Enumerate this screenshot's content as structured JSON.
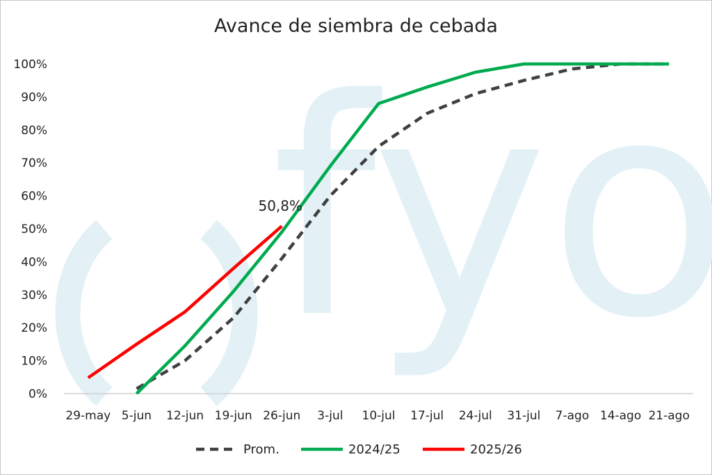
{
  "chart_data": {
    "type": "line",
    "title": "Avance de siembra de cebada",
    "xlabel": "",
    "ylabel": "",
    "categories": [
      "29-may",
      "5-jun",
      "12-jun",
      "19-jun",
      "26-jun",
      "3-jul",
      "10-jul",
      "17-jul",
      "24-jul",
      "31-jul",
      "7-ago",
      "14-ago",
      "21-ago"
    ],
    "ylim": [
      0,
      100
    ],
    "yticks": [
      "0%",
      "10%",
      "20%",
      "30%",
      "40%",
      "50%",
      "60%",
      "70%",
      "80%",
      "90%",
      "100%"
    ],
    "grid": false,
    "legend_position": "bottom",
    "series": [
      {
        "name": "Prom.",
        "style": "dashed",
        "color": "#404040",
        "values": [
          null,
          1.5,
          10,
          23,
          41,
          60,
          75,
          85,
          91,
          95,
          98.5,
          100,
          100
        ]
      },
      {
        "name": "2024/25",
        "style": "solid",
        "color": "#00aa4f",
        "values": [
          null,
          0,
          14.5,
          31,
          49,
          69,
          88,
          93,
          97.5,
          100,
          100,
          100,
          100
        ]
      },
      {
        "name": "2025/26",
        "style": "solid",
        "color": "#ff0000",
        "values": [
          4.8,
          15,
          24.8,
          38,
          50.8,
          null,
          null,
          null,
          null,
          null,
          null,
          null,
          null
        ]
      }
    ],
    "annotations": [
      {
        "text": "50,8%",
        "category": "26-jun",
        "value": 50.8
      }
    ]
  },
  "watermark": {
    "text": "fyo",
    "color": "#e3f1f6"
  }
}
